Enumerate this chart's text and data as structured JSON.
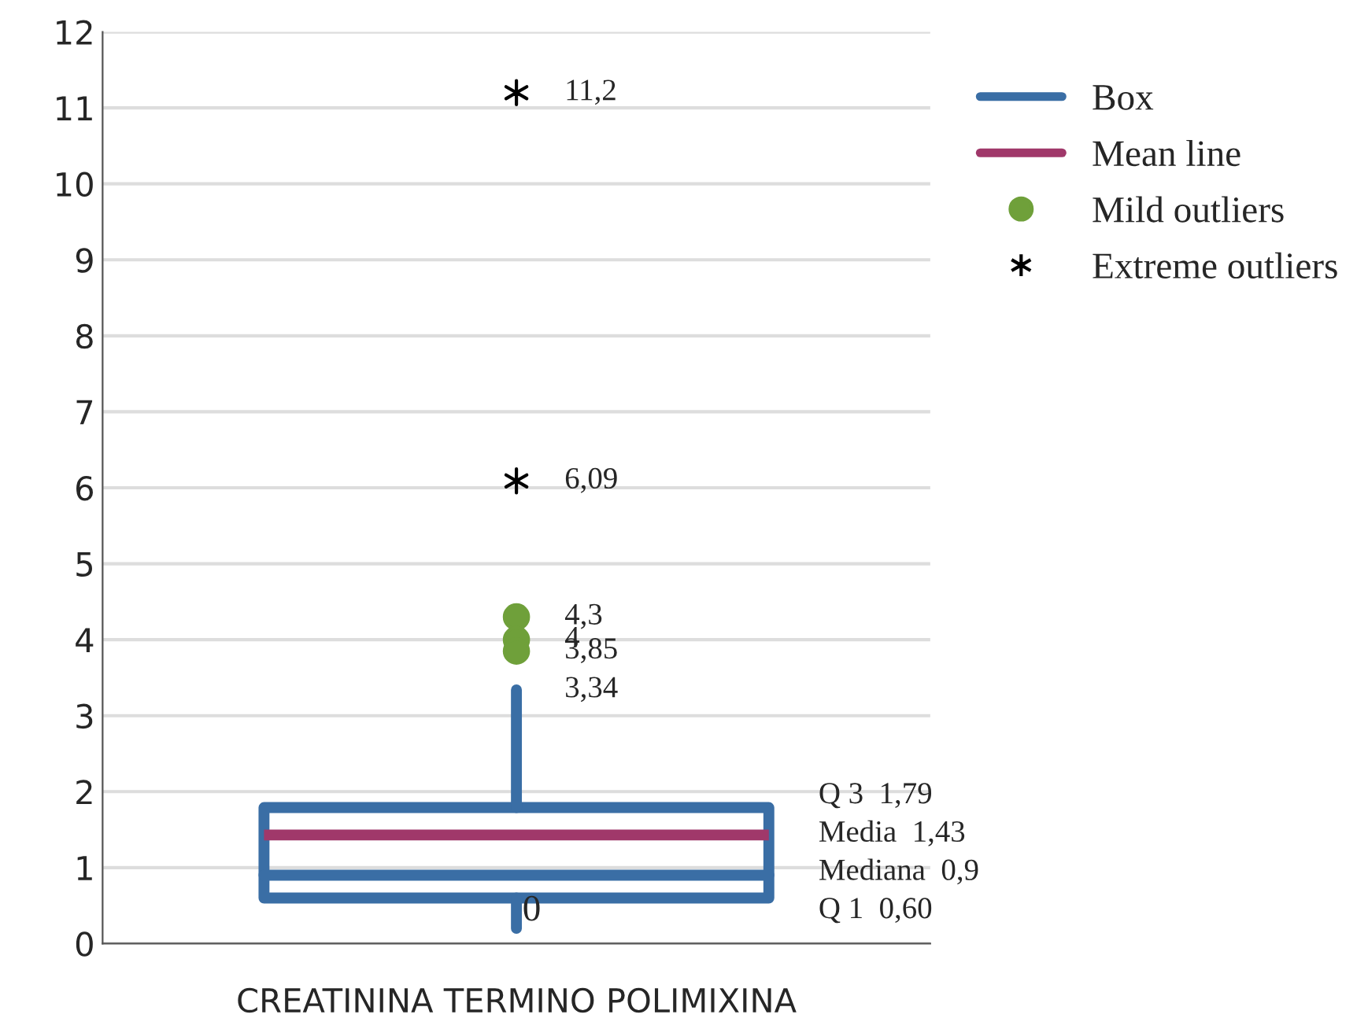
{
  "chart_data": {
    "type": "box",
    "categories": [
      "CREATININA TERMINO POLIMIXINA"
    ],
    "ylim": [
      0,
      12
    ],
    "yticks": [
      0,
      1,
      2,
      3,
      4,
      5,
      6,
      7,
      8,
      9,
      10,
      11,
      12
    ],
    "grid": "y",
    "legend": "right",
    "series": [
      {
        "name": "Box",
        "color": "#3a6ea5",
        "boxes": [
          {
            "low": 0.2,
            "q1": 0.6,
            "median": 0.9,
            "q3": 1.79,
            "high": 3.34,
            "mean": 1.43
          }
        ]
      },
      {
        "name": "Mean line",
        "type": "line",
        "color": "#a0386a",
        "values": [
          null
        ]
      },
      {
        "name": "Mild outliers",
        "type": "scatter",
        "color": "#6fa03a",
        "marker": "circle",
        "x": [
          "CREATININA TERMINO POLIMIXINA",
          "CREATININA TERMINO POLIMIXINA",
          "CREATININA TERMINO POLIMIXINA"
        ],
        "values": [
          4.3,
          4,
          3.85
        ]
      },
      {
        "name": "Extreme outliers",
        "type": "scatter",
        "color": "#000000",
        "marker": "cross",
        "x": [
          "CREATININA TERMINO POLIMIXINA",
          "CREATININA TERMINO POLIMIXINA"
        ],
        "values": [
          6.09,
          11.2
        ]
      }
    ],
    "annotations": [
      {
        "text": "11,2",
        "x": "CREATININA TERMINO POLIMIXINA",
        "y": 11.2
      },
      {
        "text": "6,09",
        "x": "CREATININA TERMINO POLIMIXINA",
        "y": 6.09
      },
      {
        "text": "4,3",
        "x": "CREATININA TERMINO POLIMIXINA",
        "y": 4.3
      },
      {
        "text": "4",
        "x": "CREATININA TERMINO POLIMIXINA",
        "y": 4
      },
      {
        "text": "3,85",
        "x": "CREATININA TERMINO POLIMIXINA",
        "y": 3.85
      },
      {
        "text": "3,34",
        "x": "CREATININA TERMINO POLIMIXINA",
        "y": 3.34
      },
      "Q 3  1,79",
      "Media  1,43",
      "Mediana  0,9",
      "Q 1  0,60",
      {
        "text": "0",
        "x": "CREATININA TERMINO POLIMIXINA",
        "y": 0.2
      }
    ]
  }
}
